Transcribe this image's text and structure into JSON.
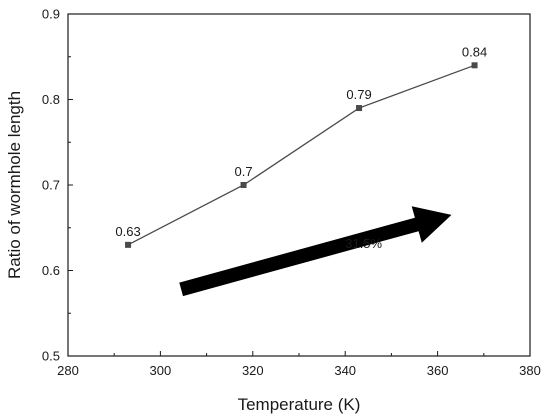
{
  "chart_data": {
    "type": "line",
    "x": [
      293,
      318,
      343,
      368
    ],
    "series": [
      {
        "values": [
          0.63,
          0.7,
          0.79,
          0.84
        ],
        "color": "#4a4a4a"
      }
    ],
    "data_labels": [
      "0.63",
      "0.7",
      "0.79",
      "0.84"
    ],
    "xlabel": "Temperature (K)",
    "ylabel": "Ratio of wormhole length",
    "xlim": [
      280,
      380
    ],
    "ylim": [
      0.5,
      0.9
    ],
    "xticks": [
      280,
      300,
      320,
      340,
      360,
      380
    ],
    "yticks": [
      0.5,
      0.6,
      0.7,
      0.8,
      0.9
    ],
    "ytick_labels": [
      "0.5",
      "0.6",
      "0.7",
      "0.8",
      "0.9"
    ],
    "grid": false,
    "annotation": {
      "text": "31.5%",
      "arrow_from": [
        304.5,
        0.578
      ],
      "arrow_to": [
        363,
        0.665
      ],
      "text_pos": [
        344,
        0.632
      ]
    }
  }
}
